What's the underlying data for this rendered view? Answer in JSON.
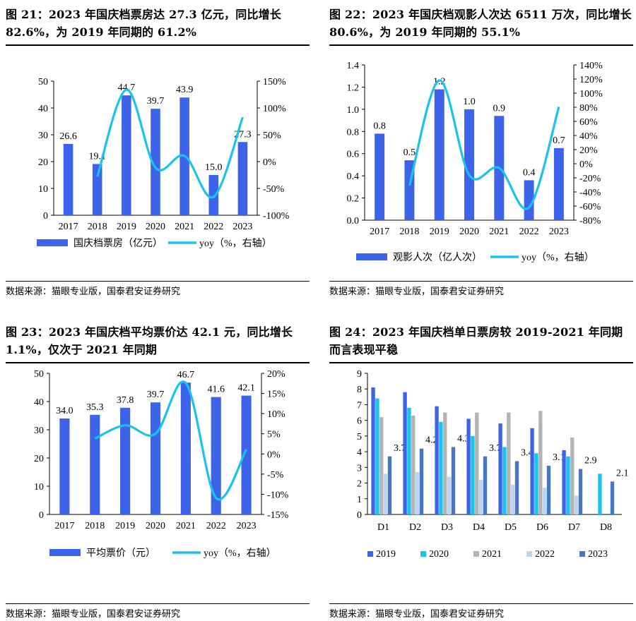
{
  "charts": [
    {
      "title": "图 21：2023 年国庆档票房达 27.3 亿元，同比增长 82.6%，为 2019 年同期的 61.2%",
      "source": "数据来源：猫眼专业版，国泰君安证券研究",
      "chart_data": {
        "type": "bar+line",
        "categories": [
          "2017",
          "2018",
          "2019",
          "2020",
          "2021",
          "2022",
          "2023"
        ],
        "series": [
          {
            "name": "国庆档票房（亿元）",
            "type": "bar",
            "axis": "left",
            "values": [
              26.6,
              19.1,
              44.7,
              39.7,
              43.9,
              15.0,
              27.3
            ],
            "labels": [
              "26.6",
              "19.1",
              "44.7",
              "39.7",
              "43.9",
              "15.0",
              "27.3"
            ],
            "color": "#3d63e8"
          },
          {
            "name": "yoy（%，右轴）",
            "type": "line",
            "axis": "right",
            "values": [
              null,
              -28.2,
              134.0,
              -11.2,
              10.6,
              -65.8,
              82.6
            ],
            "color": "#19c3ee"
          }
        ],
        "left_axis": {
          "min": 0,
          "max": 50,
          "ticks": [
            "0",
            "10",
            "20",
            "30",
            "40",
            "50"
          ]
        },
        "right_axis": {
          "min": -100,
          "max": 150,
          "ticks": [
            "-100%",
            "-50%",
            "0%",
            "50%",
            "100%",
            "150%"
          ]
        },
        "legend_position": "bottom"
      }
    },
    {
      "title": "图 22：2023 年国庆档观影人次达 6511 万次，同比增长 80.6%，为 2019 年同期的 55.1%",
      "source": "数据来源：猫眼专业版，国泰君安证券研究",
      "chart_data": {
        "type": "bar+line",
        "categories": [
          "2017",
          "2018",
          "2019",
          "2020",
          "2021",
          "2022",
          "2023"
        ],
        "series": [
          {
            "name": "观影人次（亿人次）",
            "type": "bar",
            "axis": "left",
            "values": [
              0.78,
              0.54,
              1.18,
              1.0,
              0.94,
              0.36,
              0.65
            ],
            "labels": [
              "0.8",
              "0.5",
              "1.2",
              "1.0",
              "0.9",
              "0.4",
              "0.7"
            ],
            "color": "#3d63e8"
          },
          {
            "name": "yoy（%，右轴）",
            "type": "line",
            "axis": "right",
            "values": [
              null,
              -31.0,
              118.0,
              -16.0,
              -6.0,
              -62.0,
              80.6
            ],
            "color": "#19c3ee"
          }
        ],
        "left_axis": {
          "min": 0,
          "max": 1.4,
          "ticks": [
            "0.0",
            "0.2",
            "0.4",
            "0.6",
            "0.8",
            "1.0",
            "1.2",
            "1.4"
          ]
        },
        "right_axis": {
          "min": -80,
          "max": 140,
          "ticks": [
            "-80%",
            "-60%",
            "-40%",
            "-20%",
            "0%",
            "20%",
            "40%",
            "60%",
            "80%",
            "100%",
            "120%",
            "140%"
          ]
        },
        "legend_position": "bottom"
      }
    },
    {
      "title": "图 23：2023 年国庆档平均票价达 42.1 元，同比增长 1.1%，仅次于 2021 年同期",
      "source": "数据来源：猫眼专业版，国泰君安证券研究",
      "chart_data": {
        "type": "bar+line",
        "categories": [
          "2017",
          "2018",
          "2019",
          "2020",
          "2021",
          "2022",
          "2023"
        ],
        "series": [
          {
            "name": "平均票价（元）",
            "type": "bar",
            "axis": "left",
            "values": [
              34.0,
              35.3,
              37.8,
              39.7,
              46.7,
              41.6,
              42.1
            ],
            "labels": [
              "34.0",
              "35.3",
              "37.8",
              "39.7",
              "46.7",
              "41.6",
              "42.1"
            ],
            "color": "#3d63e8"
          },
          {
            "name": "yoy（%，右轴）",
            "type": "line",
            "axis": "right",
            "values": [
              null,
              3.8,
              7.1,
              5.0,
              17.6,
              -10.9,
              1.1
            ],
            "color": "#19c3ee"
          }
        ],
        "left_axis": {
          "min": 0,
          "max": 50,
          "ticks": [
            "0",
            "10",
            "20",
            "30",
            "40",
            "50"
          ]
        },
        "right_axis": {
          "min": -15,
          "max": 20,
          "ticks": [
            "-15%",
            "-10%",
            "-5%",
            "0%",
            "5%",
            "10%",
            "15%",
            "20%"
          ]
        },
        "legend_position": "bottom"
      }
    },
    {
      "title": "图 24：2023 年国庆档单日票房较 2019-2021 年同期而言表现平稳",
      "source": "数据来源：猫眼专业版，国泰君安证券研究",
      "chart_data": {
        "type": "grouped-bar",
        "categories": [
          "D1",
          "D2",
          "D3",
          "D4",
          "D5",
          "D6",
          "D7",
          "D8"
        ],
        "series": [
          {
            "name": "2019",
            "values": [
              8.1,
              7.8,
              6.9,
              6.1,
              5.8,
              5.5,
              4.1,
              null
            ],
            "color": "#3d63e8"
          },
          {
            "name": "2020",
            "values": [
              7.4,
              6.8,
              5.9,
              5.0,
              4.3,
              3.9,
              3.7,
              2.6
            ],
            "color": "#19c3ee"
          },
          {
            "name": "2021",
            "values": [
              6.2,
              6.3,
              6.5,
              6.5,
              6.5,
              6.6,
              4.9,
              null
            ],
            "color": "#b4b4b4"
          },
          {
            "name": "2022",
            "values": [
              2.6,
              2.7,
              2.4,
              2.2,
              1.9,
              1.7,
              1.2,
              null
            ],
            "color": "#bcd6f2"
          },
          {
            "name": "2023",
            "values": [
              3.7,
              4.2,
              4.3,
              3.7,
              3.4,
              3.1,
              2.9,
              2.1
            ],
            "labels": [
              "3.7",
              "4.2",
              "4.3",
              "3.7",
              "3.4",
              "3.1",
              "2.9",
              "2.1"
            ],
            "color": "#4677c4"
          }
        ],
        "left_axis": {
          "min": 0,
          "max": 9,
          "ticks": [
            "0",
            "1",
            "2",
            "3",
            "4",
            "5",
            "6",
            "7",
            "8",
            "9"
          ]
        },
        "legend_position": "bottom"
      }
    }
  ]
}
